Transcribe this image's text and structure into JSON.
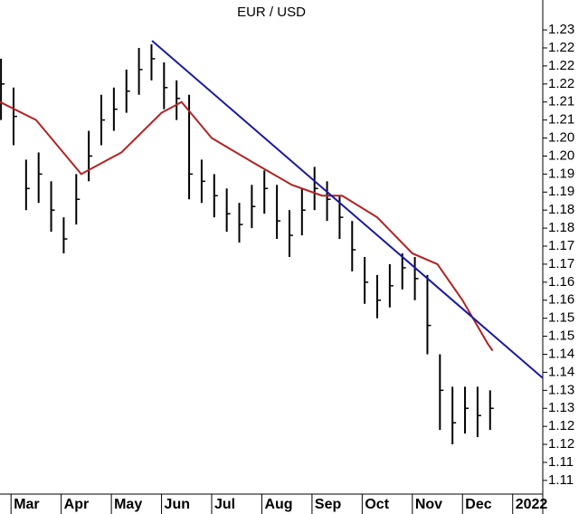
{
  "chart_data": {
    "type": "ohlc",
    "title": "EUR / USD",
    "x": [
      -0.2,
      0.05,
      0.3,
      0.55,
      0.8,
      1.05,
      1.3,
      1.55,
      1.8,
      2.05,
      2.3,
      2.55,
      2.8,
      3.05,
      3.3,
      3.55,
      3.8,
      4.05,
      4.3,
      4.55,
      4.8,
      5.05,
      5.3,
      5.55,
      5.8,
      6.05,
      6.3,
      6.55,
      6.8,
      7.05,
      7.3,
      7.55,
      7.8,
      8.05,
      8.3,
      8.55,
      8.8,
      9.05,
      9.3,
      9.55
    ],
    "high": [
      1.222,
      1.214,
      1.194,
      1.196,
      1.188,
      1.178,
      1.19,
      1.202,
      1.212,
      1.214,
      1.219,
      1.225,
      1.226,
      1.221,
      1.216,
      1.212,
      1.194,
      1.19,
      1.186,
      1.182,
      1.187,
      1.191,
      1.187,
      1.18,
      1.186,
      1.192,
      1.188,
      1.184,
      1.177,
      1.167,
      1.162,
      1.165,
      1.168,
      1.167,
      1.162,
      1.14,
      1.131,
      1.131,
      1.131,
      1.13
    ],
    "low": [
      1.205,
      1.198,
      1.18,
      1.182,
      1.174,
      1.168,
      1.176,
      1.188,
      1.198,
      1.202,
      1.207,
      1.212,
      1.216,
      1.208,
      1.205,
      1.183,
      1.182,
      1.178,
      1.174,
      1.171,
      1.175,
      1.179,
      1.172,
      1.167,
      1.173,
      1.18,
      1.177,
      1.172,
      1.163,
      1.154,
      1.15,
      1.153,
      1.158,
      1.155,
      1.14,
      1.119,
      1.115,
      1.118,
      1.117,
      1.119
    ],
    "close": [
      1.215,
      1.206,
      1.186,
      1.19,
      1.18,
      1.172,
      1.183,
      1.195,
      1.205,
      1.208,
      1.213,
      1.219,
      1.222,
      1.214,
      1.211,
      1.19,
      1.188,
      1.184,
      1.179,
      1.176,
      1.181,
      1.186,
      1.177,
      1.173,
      1.18,
      1.186,
      1.183,
      1.178,
      1.169,
      1.16,
      1.155,
      1.159,
      1.164,
      1.161,
      1.148,
      1.13,
      1.121,
      1.125,
      1.123,
      1.125
    ],
    "color": "#000000",
    "moving_average": {
      "color": "#b22222",
      "x": [
        -0.22,
        0.5,
        1.4,
        2.2,
        3.0,
        3.4,
        4.0,
        4.85,
        5.6,
        6.2,
        6.6,
        7.3,
        8.0,
        8.5,
        9.0,
        9.5,
        9.6
      ],
      "values": [
        1.21,
        1.205,
        1.19,
        1.196,
        1.207,
        1.21,
        1.2,
        1.193,
        1.187,
        1.184,
        1.184,
        1.178,
        1.168,
        1.165,
        1.155,
        1.143,
        1.141
      ]
    },
    "trendline": {
      "color": "#1a1aa0",
      "x": [
        2.81,
        10.6
      ],
      "values": [
        1.227,
        1.1334
      ]
    },
    "xlim": [
      -0.22,
      10.6
    ],
    "xticks": [
      {
        "value": 0,
        "label": "Mar"
      },
      {
        "value": 1,
        "label": "Apr"
      },
      {
        "value": 2,
        "label": "May"
      },
      {
        "value": 3,
        "label": "Jun"
      },
      {
        "value": 4,
        "label": "Jul"
      },
      {
        "value": 5,
        "label": "Aug"
      },
      {
        "value": 6,
        "label": "Sep"
      },
      {
        "value": 7,
        "label": "Oct"
      },
      {
        "value": 8,
        "label": "Nov"
      },
      {
        "value": 9,
        "label": "Dec"
      },
      {
        "value": 10,
        "label": "2022"
      }
    ],
    "ylim": [
      1.1007,
      1.2383
    ],
    "yticks": [
      {
        "value": 1.23,
        "label": "1.23"
      },
      {
        "value": 1.225,
        "label": "1.22"
      },
      {
        "value": 1.22,
        "label": "1.22"
      },
      {
        "value": 1.215,
        "label": "1.22"
      },
      {
        "value": 1.21,
        "label": "1.21"
      },
      {
        "value": 1.205,
        "label": "1.21"
      },
      {
        "value": 1.2,
        "label": "1.20"
      },
      {
        "value": 1.195,
        "label": "1.20"
      },
      {
        "value": 1.19,
        "label": "1.19"
      },
      {
        "value": 1.185,
        "label": "1.19"
      },
      {
        "value": 1.18,
        "label": "1.18"
      },
      {
        "value": 1.175,
        "label": "1.18"
      },
      {
        "value": 1.17,
        "label": "1.17"
      },
      {
        "value": 1.165,
        "label": "1.17"
      },
      {
        "value": 1.16,
        "label": "1.16"
      },
      {
        "value": 1.155,
        "label": "1.16"
      },
      {
        "value": 1.15,
        "label": "1.15"
      },
      {
        "value": 1.145,
        "label": "1.15"
      },
      {
        "value": 1.14,
        "label": "1.14"
      },
      {
        "value": 1.135,
        "label": "1.14"
      },
      {
        "value": 1.13,
        "label": "1.13"
      },
      {
        "value": 1.125,
        "label": "1.13"
      },
      {
        "value": 1.12,
        "label": "1.12"
      },
      {
        "value": 1.115,
        "label": "1.12"
      },
      {
        "value": 1.11,
        "label": "1.11"
      },
      {
        "value": 1.105,
        "label": "1.11"
      }
    ]
  }
}
